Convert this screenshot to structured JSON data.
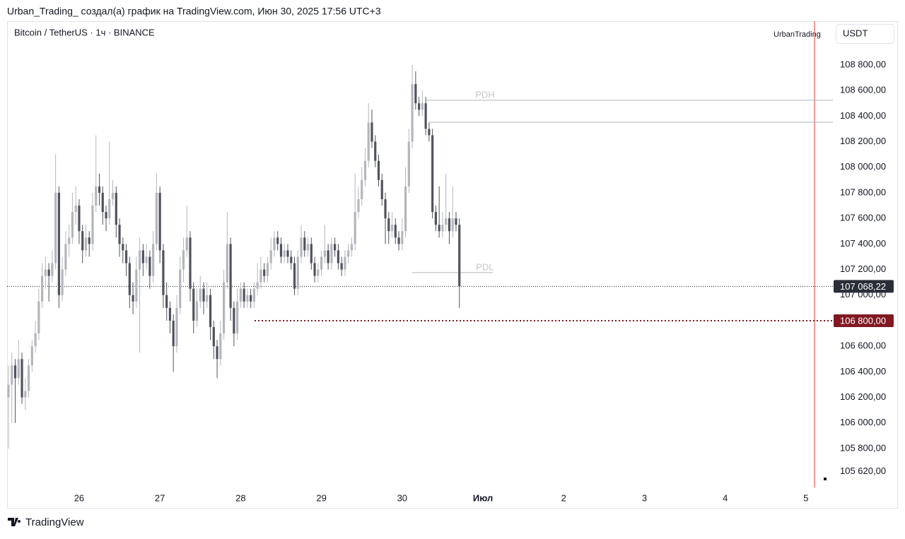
{
  "header": "Urban_Trading_ создал(а) график на TradingView.com, Июн 30, 2025 17:56 UTC+3",
  "footer": "TradingView",
  "chart_data": {
    "type": "candlestick",
    "title": "Bitcoin / TetherUS · 1ч · BINANCE",
    "author_label": "UrbanTrading",
    "currency": "USDT",
    "up_color": "#b4b6bd",
    "down_color": "#50535e",
    "ylim": [
      105496,
      109142
    ],
    "xlim": [
      0,
      245
    ],
    "yticks": [
      {
        "value": 108800,
        "label": "108 800,00"
      },
      {
        "value": 108600,
        "label": "108 600,00"
      },
      {
        "value": 108400,
        "label": "108 400,00"
      },
      {
        "value": 108200,
        "label": "108 200,00"
      },
      {
        "value": 108000,
        "label": "108 000,00"
      },
      {
        "value": 107800,
        "label": "107 800,00"
      },
      {
        "value": 107600,
        "label": "107 600,00"
      },
      {
        "value": 107400,
        "label": "107 400,00"
      },
      {
        "value": 107200,
        "label": "107 200,00"
      },
      {
        "value": 107000,
        "label": "107 000,00"
      },
      {
        "value": 106600,
        "label": "106 600,00"
      },
      {
        "value": 106400,
        "label": "106 400,00"
      },
      {
        "value": 106200,
        "label": "106 200,00"
      },
      {
        "value": 106000,
        "label": "106 000,00"
      },
      {
        "value": 105800,
        "label": "105 800,00"
      },
      {
        "value": 105620,
        "label": "105 620,00"
      }
    ],
    "xticks": [
      {
        "value": 21,
        "label": "26"
      },
      {
        "value": 45,
        "label": "27"
      },
      {
        "value": 69,
        "label": "28"
      },
      {
        "value": 93,
        "label": "29"
      },
      {
        "value": 117,
        "label": "30"
      },
      {
        "value": 141,
        "label": "Июл"
      },
      {
        "value": 165,
        "label": "2"
      },
      {
        "value": 189,
        "label": "3"
      },
      {
        "value": 213,
        "label": "4"
      },
      {
        "value": 237,
        "label": "5"
      }
    ],
    "last_price": {
      "value": 107068.22,
      "label": "107 068,22"
    },
    "alert_level": {
      "value": 106800,
      "label": "106 800,00"
    },
    "levels": [
      {
        "label": "PDH",
        "value": 108524
      },
      {
        "value": 108352
      },
      {
        "label": "PDL",
        "value": 107176
      }
    ],
    "ohlc": [
      [
        106200,
        106450,
        105800,
        106300
      ],
      [
        106300,
        106550,
        106000,
        106450
      ],
      [
        106450,
        106500,
        106000,
        106350
      ],
      [
        106350,
        106650,
        106300,
        106500
      ],
      [
        106500,
        106550,
        106150,
        106200
      ],
      [
        106200,
        106350,
        106100,
        106250
      ],
      [
        106250,
        106500,
        106200,
        106450
      ],
      [
        106450,
        106650,
        106400,
        106600
      ],
      [
        106600,
        106800,
        106550,
        106700
      ],
      [
        106700,
        107050,
        106650,
        106950
      ],
      [
        106950,
        107250,
        106900,
        107150
      ],
      [
        107150,
        107300,
        107050,
        107200
      ],
      [
        107200,
        107250,
        106950,
        107150
      ],
      [
        107150,
        107350,
        107100,
        107250
      ],
      [
        107250,
        108100,
        107200,
        107800
      ],
      [
        107800,
        107850,
        106900,
        107000
      ],
      [
        107000,
        107300,
        106950,
        107200
      ],
      [
        107200,
        107500,
        107150,
        107400
      ],
      [
        107400,
        107550,
        107300,
        107450
      ],
      [
        107450,
        107800,
        107400,
        107650
      ],
      [
        107650,
        107850,
        107550,
        107700
      ],
      [
        107700,
        107750,
        107400,
        107500
      ],
      [
        107500,
        107550,
        107250,
        107350
      ],
      [
        107350,
        107550,
        107300,
        107450
      ],
      [
        107450,
        107500,
        107300,
        107400
      ],
      [
        107400,
        107800,
        107350,
        107700
      ],
      [
        107700,
        108250,
        107650,
        107850
      ],
      [
        107850,
        107950,
        107700,
        107800
      ],
      [
        107800,
        107850,
        107550,
        107650
      ],
      [
        107650,
        107700,
        107500,
        107600
      ],
      [
        107600,
        108200,
        107550,
        107750
      ],
      [
        107750,
        107900,
        107700,
        107800
      ],
      [
        107800,
        107850,
        107450,
        107550
      ],
      [
        107550,
        107600,
        107300,
        107400
      ],
      [
        107400,
        107450,
        107250,
        107350
      ],
      [
        107350,
        107400,
        107150,
        107250
      ],
      [
        107250,
        107300,
        106900,
        107000
      ],
      [
        107000,
        107100,
        106850,
        106950
      ],
      [
        106950,
        107300,
        106900,
        107200
      ],
      [
        107200,
        107450,
        106550,
        107350
      ],
      [
        107350,
        107400,
        107150,
        107250
      ],
      [
        107250,
        107400,
        107200,
        107300
      ],
      [
        107300,
        107350,
        107050,
        107150
      ],
      [
        107150,
        107500,
        107100,
        107400
      ],
      [
        107400,
        107950,
        107350,
        107800
      ],
      [
        107800,
        107850,
        107250,
        107350
      ],
      [
        107350,
        107400,
        106900,
        107000
      ],
      [
        107000,
        107100,
        106800,
        106900
      ],
      [
        106900,
        106950,
        106700,
        106800
      ],
      [
        106800,
        106850,
        106400,
        106600
      ],
      [
        106600,
        107000,
        106550,
        106900
      ],
      [
        106900,
        107300,
        106850,
        107200
      ],
      [
        107200,
        107450,
        107100,
        107350
      ],
      [
        107350,
        107700,
        107300,
        107450
      ],
      [
        107450,
        107500,
        106950,
        107050
      ],
      [
        107050,
        107100,
        106700,
        106800
      ],
      [
        106800,
        107050,
        106750,
        106950
      ],
      [
        106950,
        107150,
        106900,
        107050
      ],
      [
        107050,
        107100,
        106850,
        106950
      ],
      [
        106950,
        107100,
        106900,
        107000
      ],
      [
        107000,
        107050,
        106650,
        106750
      ],
      [
        106750,
        106800,
        106500,
        106600
      ],
      [
        106600,
        106650,
        106350,
        106500
      ],
      [
        106500,
        106800,
        106450,
        106700
      ],
      [
        106700,
        107200,
        106650,
        107100
      ],
      [
        107100,
        107650,
        107050,
        107400
      ],
      [
        107400,
        107450,
        106800,
        106900
      ],
      [
        106900,
        106950,
        106600,
        106700
      ],
      [
        106700,
        107050,
        106650,
        106950
      ],
      [
        106950,
        107100,
        106900,
        107050
      ],
      [
        107050,
        107100,
        106900,
        106950
      ],
      [
        106950,
        107050,
        106900,
        107000
      ],
      [
        107000,
        107050,
        106900,
        106950
      ],
      [
        106950,
        107100,
        106900,
        107050
      ],
      [
        107050,
        107250,
        107000,
        107100
      ],
      [
        107100,
        107300,
        107050,
        107200
      ],
      [
        107200,
        107250,
        107100,
        107150
      ],
      [
        107150,
        107300,
        107100,
        107250
      ],
      [
        107250,
        107450,
        107200,
        107350
      ],
      [
        107350,
        107500,
        107300,
        107450
      ],
      [
        107450,
        107500,
        107350,
        107400
      ],
      [
        107400,
        107450,
        107250,
        107300
      ],
      [
        107300,
        107400,
        107250,
        107350
      ],
      [
        107350,
        107400,
        107250,
        107300
      ],
      [
        107300,
        107350,
        107200,
        107250
      ],
      [
        107250,
        107300,
        107000,
        107050
      ],
      [
        107050,
        107350,
        107000,
        107300
      ],
      [
        107300,
        107550,
        107250,
        107450
      ],
      [
        107450,
        107500,
        107300,
        107350
      ],
      [
        107350,
        107450,
        107300,
        107400
      ],
      [
        107400,
        107450,
        107200,
        107250
      ],
      [
        107250,
        107300,
        107100,
        107150
      ],
      [
        107150,
        107250,
        107100,
        107200
      ],
      [
        107200,
        107350,
        107150,
        107300
      ],
      [
        107300,
        107550,
        107250,
        107350
      ],
      [
        107350,
        107400,
        107200,
        107250
      ],
      [
        107250,
        107450,
        107200,
        107400
      ],
      [
        107400,
        107450,
        107300,
        107350
      ],
      [
        107350,
        107400,
        107200,
        107250
      ],
      [
        107250,
        107300,
        107150,
        107200
      ],
      [
        107200,
        107350,
        107150,
        107300
      ],
      [
        107300,
        107400,
        107250,
        107350
      ],
      [
        107350,
        107450,
        107300,
        107400
      ],
      [
        107400,
        107950,
        107350,
        107650
      ],
      [
        107650,
        107850,
        107600,
        107750
      ],
      [
        107750,
        108000,
        107700,
        107900
      ],
      [
        107900,
        108150,
        107850,
        108050
      ],
      [
        108050,
        108500,
        108000,
        108350
      ],
      [
        108350,
        108450,
        108150,
        108200
      ],
      [
        108200,
        108250,
        108000,
        108050
      ],
      [
        108050,
        108100,
        107850,
        107900
      ],
      [
        107900,
        107950,
        107700,
        107750
      ],
      [
        107750,
        107800,
        107400,
        107600
      ],
      [
        107600,
        107650,
        107400,
        107500
      ],
      [
        107500,
        107650,
        107450,
        107550
      ],
      [
        107550,
        107600,
        107400,
        107450
      ],
      [
        107450,
        107500,
        107350,
        107400
      ],
      [
        107400,
        107600,
        107350,
        107500
      ],
      [
        107500,
        108000,
        107450,
        107850
      ],
      [
        107850,
        108300,
        107800,
        108200
      ],
      [
        108200,
        108800,
        108150,
        108650
      ],
      [
        108650,
        108750,
        108450,
        108500
      ],
      [
        108500,
        108550,
        108400,
        108450
      ],
      [
        108450,
        108600,
        108400,
        108500
      ],
      [
        108500,
        108550,
        108250,
        108300
      ],
      [
        108300,
        108350,
        108200,
        108250
      ],
      [
        108250,
        108300,
        107600,
        107650
      ],
      [
        107650,
        107700,
        107500,
        107550
      ],
      [
        107550,
        107850,
        107450,
        107500
      ],
      [
        107500,
        107650,
        107450,
        107550
      ],
      [
        107550,
        107950,
        107500,
        107600
      ],
      [
        107600,
        107650,
        107400,
        107500
      ],
      [
        107500,
        107850,
        107450,
        107600
      ],
      [
        107600,
        107650,
        107500,
        107550
      ],
      [
        107550,
        107600,
        106900,
        107068.22
      ]
    ]
  }
}
